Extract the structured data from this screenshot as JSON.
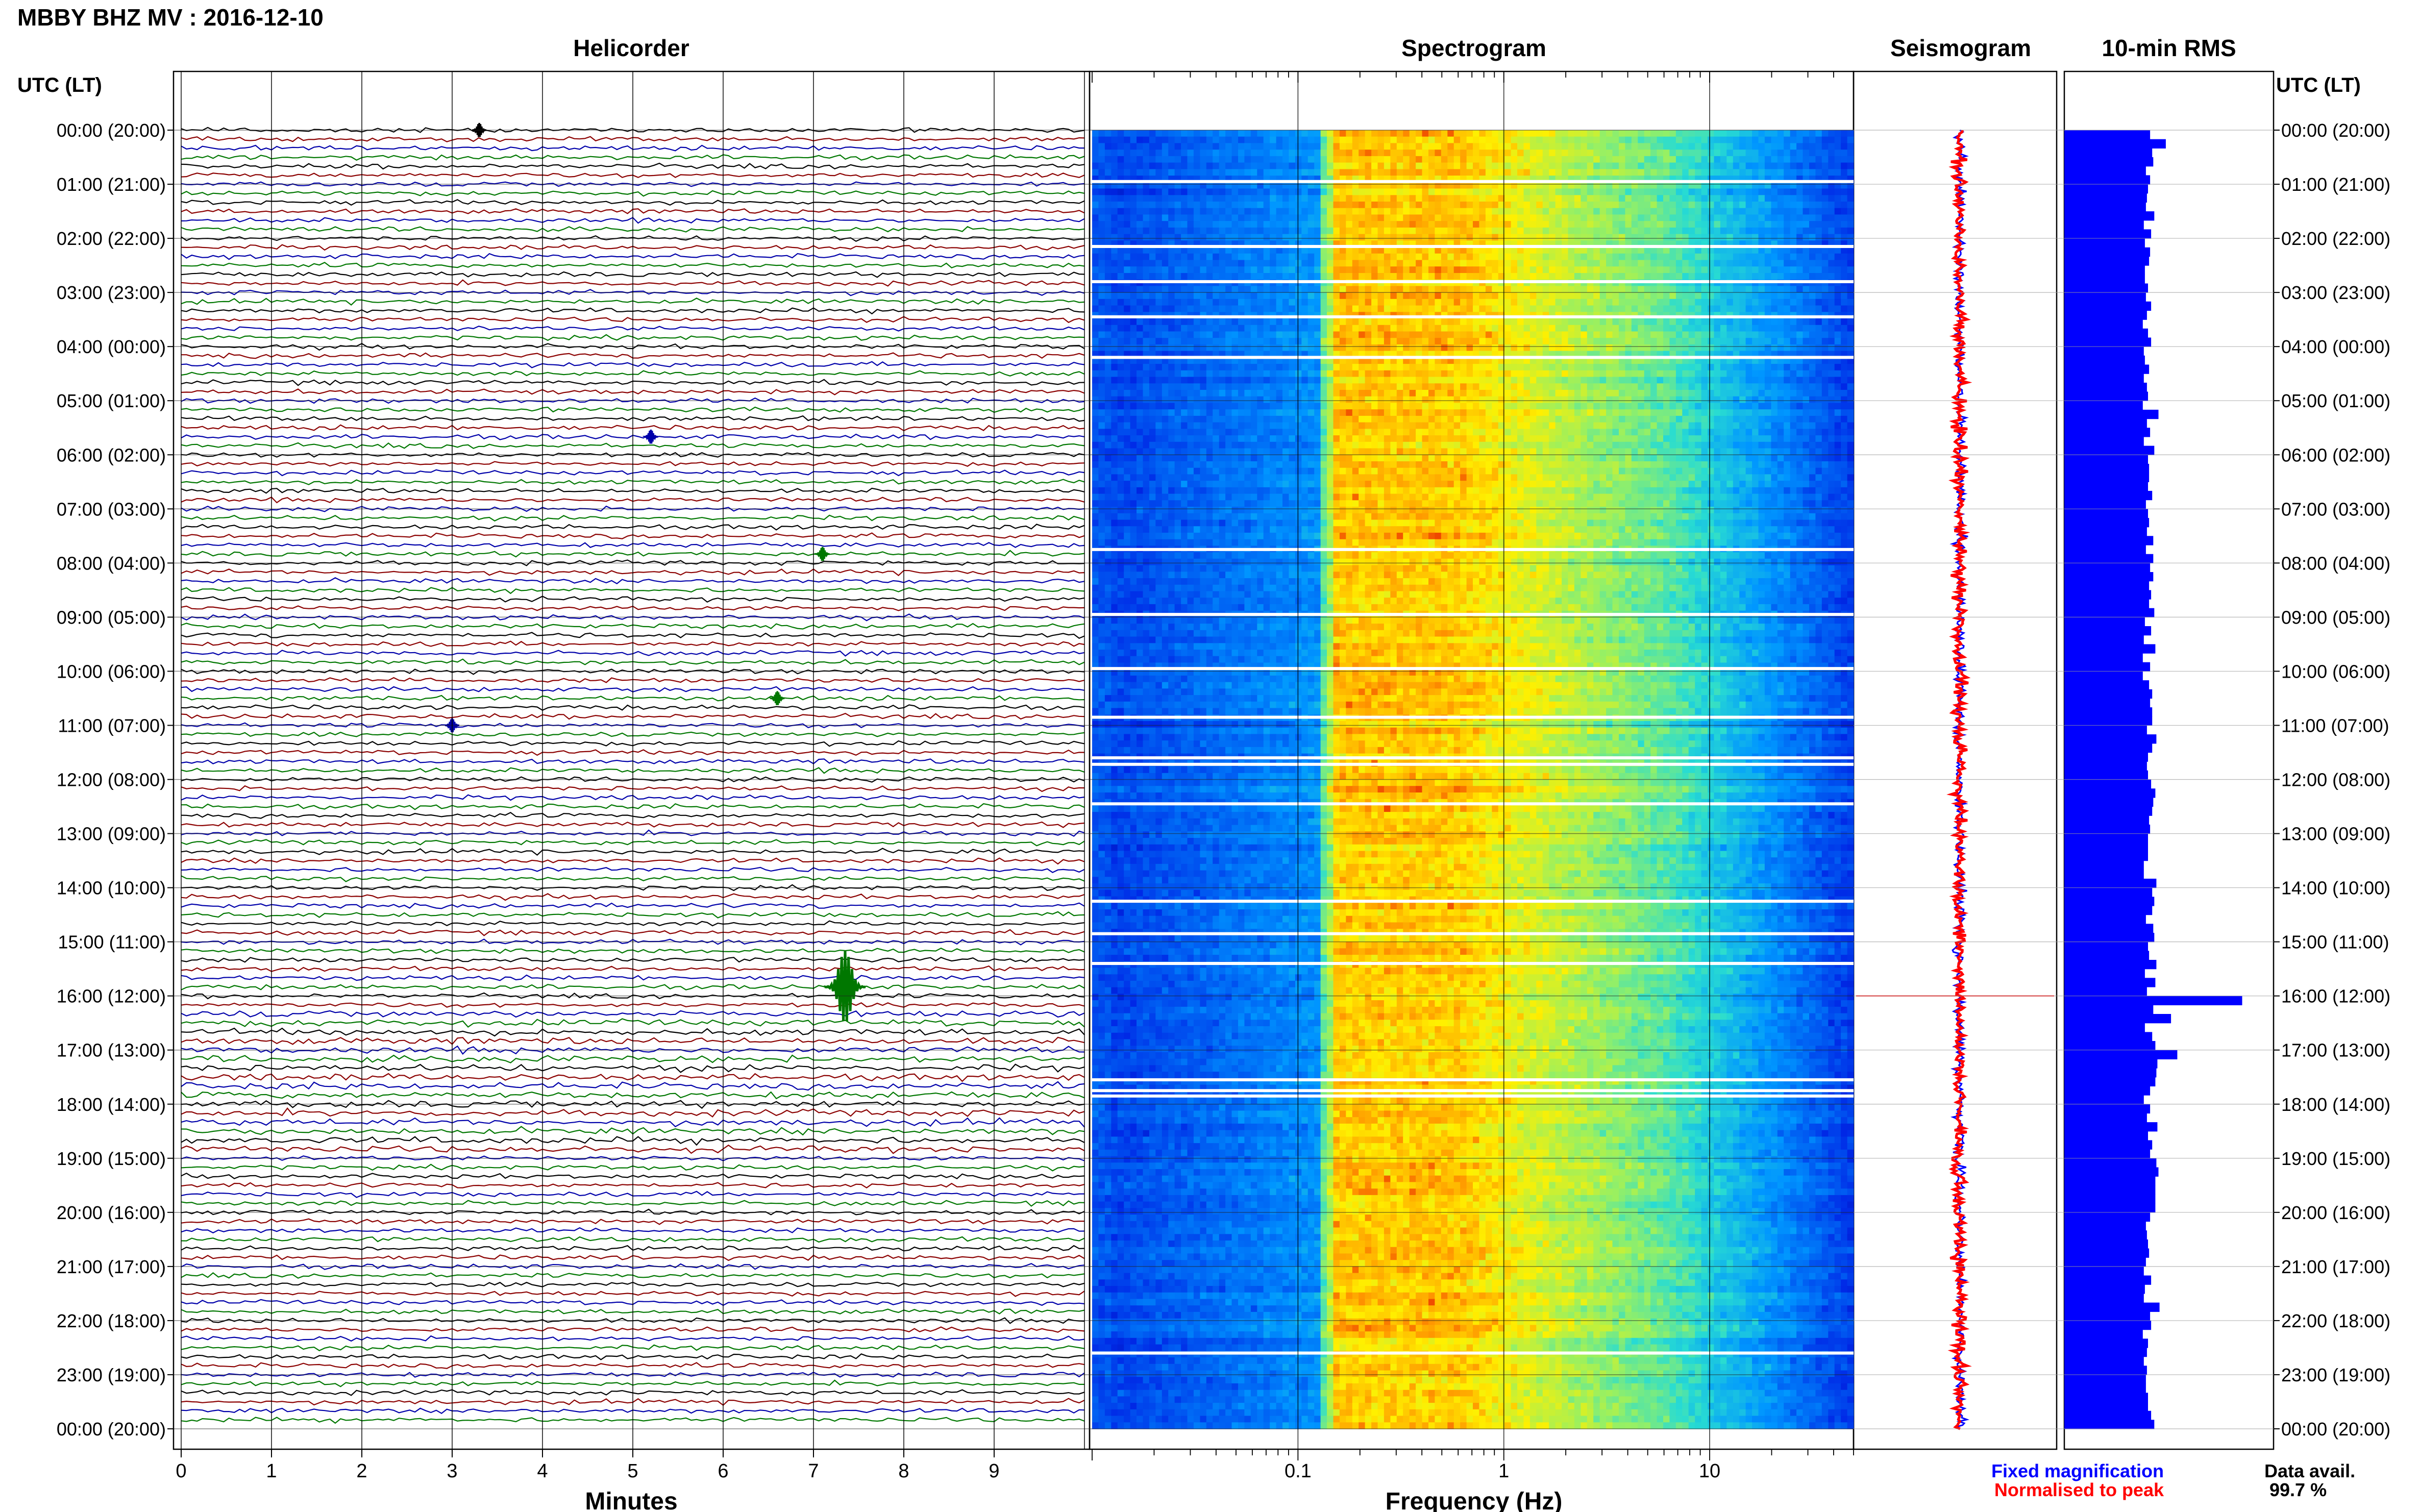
{
  "title": "MBBY BHZ MV : 2016-12-10",
  "panels": {
    "helicorder": "Helicorder",
    "spectrogram": "Spectrogram",
    "seismogram": "Seismogram",
    "rms": "10-min RMS"
  },
  "time_axis_label": "UTC (LT)",
  "time_labels": [
    "00:00 (20:00)",
    "01:00 (21:00)",
    "02:00 (22:00)",
    "03:00 (23:00)",
    "04:00 (00:00)",
    "05:00 (01:00)",
    "06:00 (02:00)",
    "07:00 (03:00)",
    "08:00 (04:00)",
    "09:00 (05:00)",
    "10:00 (06:00)",
    "11:00 (07:00)",
    "12:00 (08:00)",
    "13:00 (09:00)",
    "14:00 (10:00)",
    "15:00 (11:00)",
    "16:00 (12:00)",
    "17:00 (13:00)",
    "18:00 (14:00)",
    "19:00 (15:00)",
    "20:00 (16:00)",
    "21:00 (17:00)",
    "22:00 (18:00)",
    "23:00 (19:00)",
    "00:00 (20:00)"
  ],
  "legend": {
    "fixed": "Fixed magnification",
    "normalised": "Normalised to peak",
    "avail_label": "Data avail.",
    "avail_value": "99.7 %"
  },
  "colors": {
    "fixed": "#0000ff",
    "normalised": "#ff0000",
    "trace_cycle": [
      "#000000",
      "#8b0000",
      "#0000aa",
      "#007700"
    ],
    "rms_bar": "#0000ff"
  },
  "chart_data": [
    {
      "type": "line",
      "name": "helicorder",
      "xlabel": "Minutes",
      "x_ticks": [
        "0",
        "1",
        "2",
        "3",
        "4",
        "5",
        "6",
        "7",
        "8",
        "9"
      ],
      "xlim": [
        0,
        10
      ],
      "rows_per_hour": 6,
      "rows": 144,
      "events": [
        {
          "hour": 15.833,
          "minute": 7.35,
          "note": "largest event, green trace"
        },
        {
          "hour": 11.0,
          "minute": 3.0
        },
        {
          "hour": 0.0,
          "minute": 3.3
        },
        {
          "hour": 5.667,
          "minute": 5.2
        },
        {
          "hour": 7.833,
          "minute": 7.1
        },
        {
          "hour": 10.5,
          "minute": 6.6
        }
      ]
    },
    {
      "type": "heatmap",
      "name": "spectrogram",
      "xlabel": "Frequency (Hz)",
      "x_scale": "log",
      "x_ticks": [
        "0.1",
        "1",
        "10"
      ],
      "xlim": [
        0.01,
        50
      ],
      "peak_band_hz": [
        0.15,
        0.6
      ],
      "gap_hours": [
        0.95,
        2.15,
        2.8,
        3.45,
        4.2,
        7.75,
        8.95,
        9.95,
        10.85,
        11.6,
        11.72,
        12.45,
        14.25,
        14.85,
        15.4,
        17.55,
        17.75,
        17.85,
        22.6
      ]
    },
    {
      "type": "line",
      "name": "seismogram",
      "series": [
        {
          "name": "Fixed magnification",
          "color": "#0000ff"
        },
        {
          "name": "Normalised to peak",
          "color": "#ff0000"
        }
      ],
      "spike_hour": 16.0
    },
    {
      "type": "bar",
      "name": "rms",
      "orientation": "horizontal",
      "bins_per_hour": 6,
      "values": [
        82,
        97,
        84,
        85,
        78,
        82,
        80,
        79,
        78,
        86,
        76,
        83,
        77,
        82,
        81,
        77,
        77,
        80,
        78,
        83,
        79,
        75,
        80,
        83,
        76,
        77,
        81,
        76,
        79,
        80,
        75,
        90,
        79,
        82,
        76,
        86,
        80,
        81,
        81,
        80,
        84,
        78,
        80,
        81,
        79,
        85,
        78,
        85,
        82,
        85,
        81,
        83,
        81,
        86,
        77,
        83,
        76,
        87,
        75,
        82,
        75,
        81,
        84,
        82,
        84,
        84,
        79,
        88,
        84,
        80,
        79,
        80,
        83,
        87,
        85,
        84,
        81,
        82,
        80,
        80,
        80,
        76,
        76,
        88,
        84,
        86,
        84,
        78,
        85,
        86,
        80,
        81,
        88,
        77,
        87,
        79,
        85,
        85,
        87,
        77,
        84,
        87,
        87,
        89,
        88,
        87,
        82,
        76,
        82,
        79,
        89,
        80,
        84,
        82,
        88,
        90,
        87,
        87,
        87,
        87,
        82,
        78,
        79,
        80,
        81,
        78,
        76,
        83,
        77,
        76,
        91,
        82,
        83,
        75,
        80,
        79,
        76,
        79,
        78,
        78,
        80,
        80,
        83,
        86
      ],
      "overrides": {
        "96": 170,
        "98": 102,
        "102": 108
      },
      "xlim": [
        0,
        200
      ]
    }
  ]
}
